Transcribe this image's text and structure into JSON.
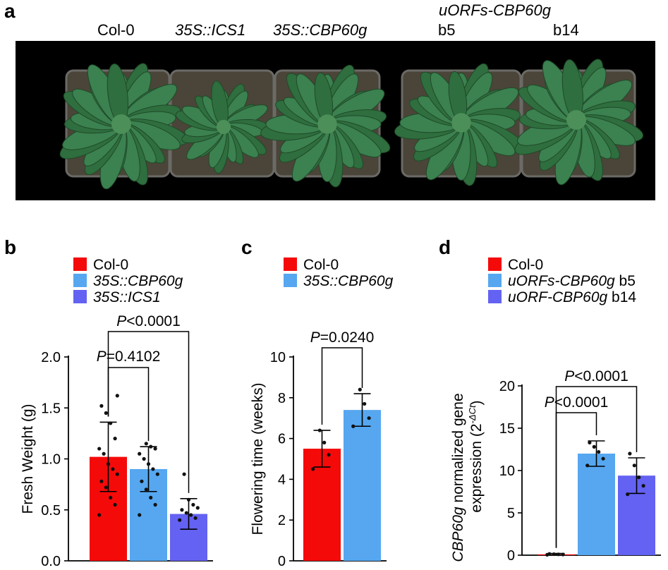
{
  "panel_a": {
    "letter": "a",
    "labels": {
      "col0": "Col-0",
      "ics1": "35S::ICS1",
      "cbp60g": "35S::CBP60g",
      "uorfs": "uORFs-CBP60g",
      "b5": "b5",
      "b14": "b14"
    }
  },
  "colors": {
    "red": "#f50a0a",
    "light_blue": "#56a7f0",
    "purple": "#6362f2"
  },
  "chart_data": [
    {
      "letter": "b",
      "type": "bar",
      "categories": [
        "Col-0",
        "35S::CBP60g",
        "35S::ICS1"
      ],
      "values": [
        1.02,
        0.9,
        0.46
      ],
      "error": [
        0.34,
        0.22,
        0.15
      ],
      "points": [
        [
          0.45,
          0.55,
          0.62,
          0.72,
          0.78,
          0.85,
          0.9,
          0.95,
          1.05,
          1.1,
          1.2,
          1.35,
          1.45,
          1.52,
          1.62
        ],
        [
          0.45,
          0.55,
          0.62,
          0.7,
          0.78,
          0.85,
          0.9,
          0.95,
          1.0,
          1.05,
          1.1,
          1.12,
          1.15
        ],
        [
          0.4,
          0.42,
          0.45,
          0.47,
          0.5,
          0.52,
          0.55,
          0.6,
          0.85
        ]
      ],
      "colors": [
        "#f50a0a",
        "#56a7f0",
        "#6362f2"
      ],
      "legend": [
        "Col-0",
        "35S::CBP60g",
        "35S::ICS1"
      ],
      "ylabel": "Fresh Weight (g)",
      "ylim": [
        0,
        2.0
      ],
      "yticks": [
        "0.0",
        "0.5",
        "1.0",
        "1.5",
        "2.0"
      ],
      "brackets": [
        {
          "from": 0,
          "to": 1,
          "p": "=0.4102"
        },
        {
          "from": 0,
          "to": 2,
          "p": "<0.0001"
        }
      ]
    },
    {
      "letter": "c",
      "type": "bar",
      "categories": [
        "Col-0",
        "35S::CBP60g"
      ],
      "values": [
        5.5,
        7.4
      ],
      "error": [
        0.9,
        0.8
      ],
      "points": [
        [
          4.5,
          5.2,
          5.8,
          6.4
        ],
        [
          6.6,
          7.0,
          7.7,
          8.4
        ]
      ],
      "colors": [
        "#f50a0a",
        "#56a7f0"
      ],
      "legend": [
        "Col-0",
        "35S::CBP60g"
      ],
      "ylabel": "Flowering time  (weeks)",
      "ylim": [
        0,
        10
      ],
      "yticks": [
        "0",
        "2",
        "4",
        "6",
        "8",
        "10"
      ],
      "brackets": [
        {
          "from": 0,
          "to": 1,
          "p": "=0.0240"
        }
      ]
    },
    {
      "letter": "d",
      "type": "bar",
      "categories": [
        "Col-0",
        "uORFs-CBP60g b5",
        "uORF-CBP60g b14"
      ],
      "values": [
        0.1,
        12.0,
        9.4
      ],
      "error": [
        0.1,
        1.5,
        2.1
      ],
      "points": [
        [
          0.05,
          0.08,
          0.1,
          0.12,
          0.15
        ],
        [
          10.6,
          11.4,
          12.2,
          12.8,
          13.3
        ],
        [
          7.2,
          8.2,
          9.2,
          10.6,
          12.0
        ]
      ],
      "colors": [
        "#f50a0a",
        "#56a7f0",
        "#6362f2"
      ],
      "legend": [
        "Col-0",
        "uORFs-CBP60g b5",
        "uORF-CBP60g b14"
      ],
      "ylabel_italic": "CBP60g",
      "ylabel_line1": " normalized gene",
      "ylabel_line2": "expression (2",
      "ylabel_sup": "-ΔCt",
      "ylabel_close": ")",
      "ylim": [
        0,
        20
      ],
      "yticks": [
        "0",
        "5",
        "10",
        "15",
        "20"
      ],
      "brackets": [
        {
          "from": 0,
          "to": 1,
          "p": "<0.0001"
        },
        {
          "from": 0,
          "to": 2,
          "p": "<0.0001"
        }
      ]
    }
  ]
}
